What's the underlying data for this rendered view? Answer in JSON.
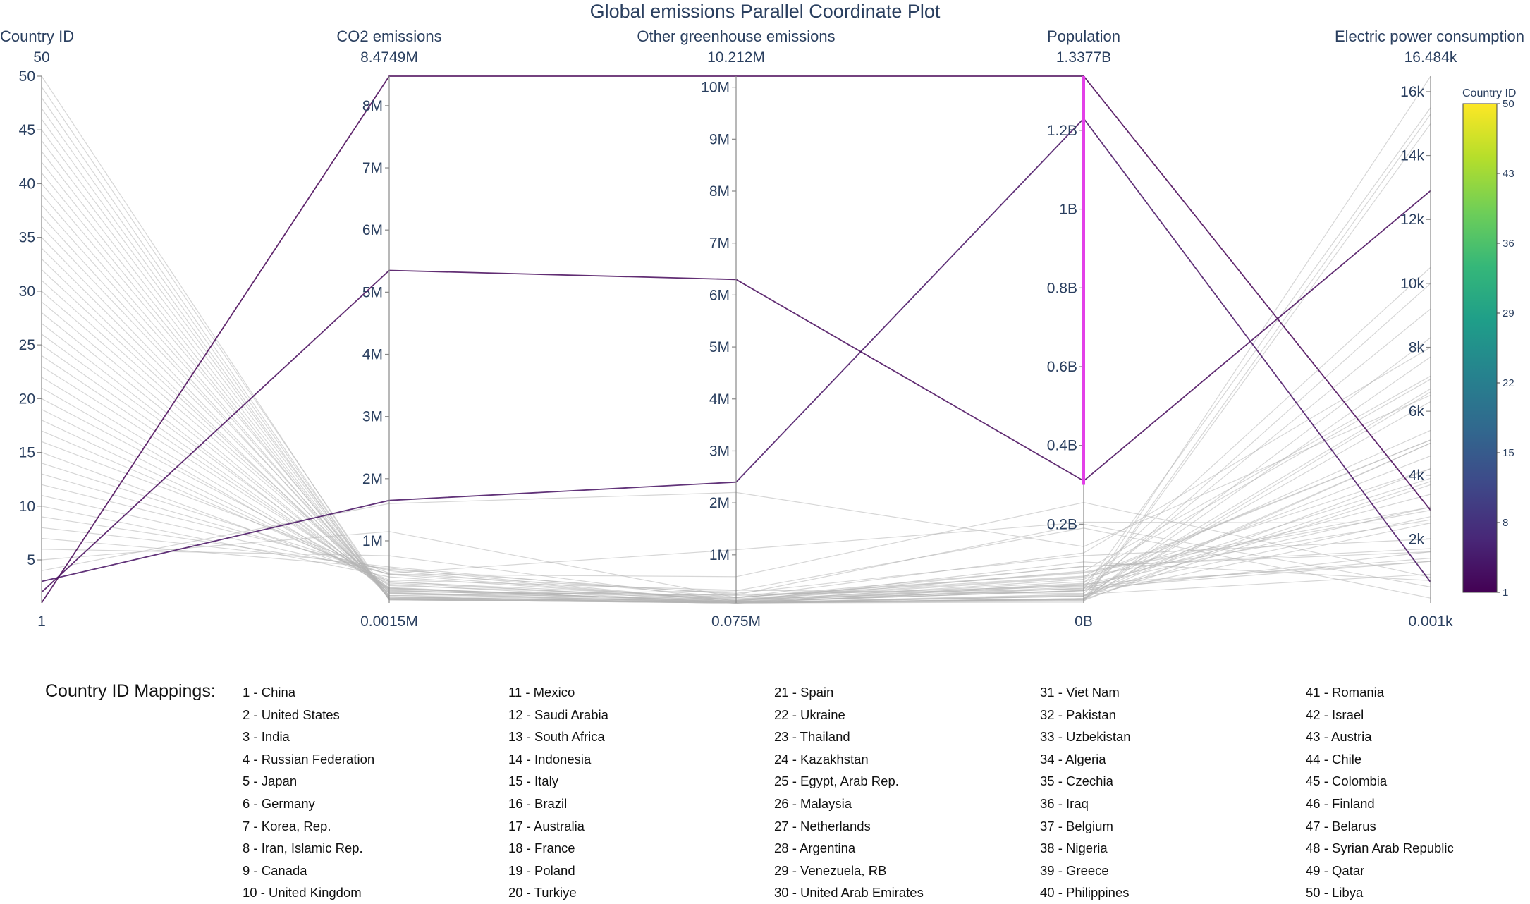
{
  "chart_data": {
    "type": "parallel_coordinates",
    "title": "Global emissions Parallel Coordinate Plot",
    "dimensions": [
      {
        "key": "country_id",
        "label": "Country ID",
        "range": [
          1,
          50
        ],
        "range_min_label": "1",
        "range_max_label": "50",
        "ticks": [
          5,
          10,
          15,
          20,
          25,
          30,
          35,
          40,
          45,
          50
        ],
        "tick_labels": [
          "5",
          "10",
          "15",
          "20",
          "25",
          "30",
          "35",
          "40",
          "45",
          "50"
        ]
      },
      {
        "key": "co2",
        "label": "CO2 emissions",
        "range": [
          0.0015,
          8.4749
        ],
        "range_min_label": "0.0015M",
        "range_max_label": "8.4749M",
        "ticks": [
          1,
          2,
          3,
          4,
          5,
          6,
          7,
          8
        ],
        "tick_labels": [
          "1M",
          "2M",
          "3M",
          "4M",
          "5M",
          "6M",
          "7M",
          "8M"
        ]
      },
      {
        "key": "ghg",
        "label": "Other greenhouse emissions",
        "range": [
          0.075,
          10.212
        ],
        "range_min_label": "0.075M",
        "range_max_label": "10.212M",
        "ticks": [
          1,
          2,
          3,
          4,
          5,
          6,
          7,
          8,
          9,
          10
        ],
        "tick_labels": [
          "1M",
          "2M",
          "3M",
          "4M",
          "5M",
          "6M",
          "7M",
          "8M",
          "9M",
          "10M"
        ]
      },
      {
        "key": "population",
        "label": "Population",
        "range": [
          0,
          1.3377
        ],
        "range_min_label": "0B",
        "range_max_label": "1.3377B",
        "ticks": [
          0.2,
          0.4,
          0.6,
          0.8,
          1.0,
          1.2
        ],
        "tick_labels": [
          "0.2B",
          "0.4B",
          "0.6B",
          "0.8B",
          "1B",
          "1.2B"
        ],
        "constraint_range": [
          0.3,
          1.3377
        ]
      },
      {
        "key": "electric",
        "label": "Electric power consumption",
        "range": [
          0.001,
          16.484
        ],
        "range_min_label": "0.001k",
        "range_max_label": "16.484k",
        "ticks": [
          2,
          4,
          6,
          8,
          10,
          12,
          14,
          16
        ],
        "tick_labels": [
          "2k",
          "4k",
          "6k",
          "8k",
          "10k",
          "12k",
          "14k",
          "16k"
        ]
      }
    ],
    "highlighted_lines": [
      {
        "country_id": 1,
        "co2": 8.4749,
        "ghg": 10.212,
        "population": 1.3377,
        "electric": 2.9
      },
      {
        "country_id": 2,
        "co2": 5.35,
        "ghg": 6.3,
        "population": 0.31,
        "electric": 12.9
      },
      {
        "country_id": 3,
        "co2": 1.65,
        "ghg": 2.4,
        "population": 1.23,
        "electric": 0.65
      }
    ],
    "background_lines": [
      {
        "country_id": 4,
        "co2": 1.6,
        "ghg": 2.2,
        "population": 0.143,
        "electric": 6.5
      },
      {
        "country_id": 5,
        "co2": 1.15,
        "ghg": 0.18,
        "population": 0.127,
        "electric": 8.0
      },
      {
        "country_id": 6,
        "co2": 0.76,
        "ghg": 0.11,
        "population": 0.081,
        "electric": 7.1
      },
      {
        "country_id": 7,
        "co2": 0.56,
        "ghg": 0.09,
        "population": 0.05,
        "electric": 10.5
      },
      {
        "country_id": 8,
        "co2": 0.58,
        "ghg": 0.18,
        "population": 0.076,
        "electric": 2.9
      },
      {
        "country_id": 9,
        "co2": 0.54,
        "ghg": 0.24,
        "population": 0.035,
        "electric": 15.5
      },
      {
        "country_id": 10,
        "co2": 0.42,
        "ghg": 0.13,
        "population": 0.064,
        "electric": 5.1
      },
      {
        "country_id": 11,
        "co2": 0.47,
        "ghg": 0.26,
        "population": 0.12,
        "electric": 2.0
      },
      {
        "country_id": 12,
        "co2": 0.52,
        "ghg": 0.09,
        "population": 0.031,
        "electric": 9.2
      },
      {
        "country_id": 13,
        "co2": 0.46,
        "ghg": 0.12,
        "population": 0.054,
        "electric": 4.2
      },
      {
        "country_id": 14,
        "co2": 0.46,
        "ghg": 0.58,
        "population": 0.255,
        "electric": 0.8
      },
      {
        "country_id": 15,
        "co2": 0.35,
        "ghg": 0.1,
        "population": 0.06,
        "electric": 5.1
      },
      {
        "country_id": 16,
        "co2": 0.48,
        "ghg": 1.1,
        "population": 0.205,
        "electric": 2.5
      },
      {
        "country_id": 17,
        "co2": 0.37,
        "ghg": 0.32,
        "population": 0.024,
        "electric": 10.0
      },
      {
        "country_id": 18,
        "co2": 0.32,
        "ghg": 0.15,
        "population": 0.066,
        "electric": 7.0
      },
      {
        "country_id": 19,
        "co2": 0.3,
        "ghg": 0.08,
        "population": 0.038,
        "electric": 3.9
      },
      {
        "country_id": 20,
        "co2": 0.34,
        "ghg": 0.18,
        "population": 0.078,
        "electric": 3.0
      },
      {
        "country_id": 21,
        "co2": 0.24,
        "ghg": 0.09,
        "population": 0.046,
        "electric": 5.4
      },
      {
        "country_id": 22,
        "co2": 0.23,
        "ghg": 0.1,
        "population": 0.045,
        "electric": 3.4
      },
      {
        "country_id": 23,
        "co2": 0.28,
        "ghg": 0.18,
        "population": 0.068,
        "electric": 2.6
      },
      {
        "country_id": 24,
        "co2": 0.25,
        "ghg": 0.06,
        "population": 0.017,
        "electric": 5.0
      },
      {
        "country_id": 25,
        "co2": 0.22,
        "ghg": 0.17,
        "population": 0.092,
        "electric": 1.7
      },
      {
        "country_id": 26,
        "co2": 0.24,
        "ghg": 0.09,
        "population": 0.031,
        "electric": 4.6
      },
      {
        "country_id": 27,
        "co2": 0.16,
        "ghg": 0.06,
        "population": 0.017,
        "electric": 6.7
      },
      {
        "country_id": 28,
        "co2": 0.19,
        "ghg": 0.22,
        "population": 0.043,
        "electric": 3.0
      },
      {
        "country_id": 29,
        "co2": 0.16,
        "ghg": 0.15,
        "population": 0.031,
        "electric": 2.7
      },
      {
        "country_id": 30,
        "co2": 0.21,
        "ghg": 0.06,
        "population": 0.009,
        "electric": 16.48
      },
      {
        "country_id": 31,
        "co2": 0.2,
        "ghg": 0.12,
        "population": 0.093,
        "electric": 1.6
      },
      {
        "country_id": 32,
        "co2": 0.18,
        "ghg": 0.23,
        "population": 0.2,
        "electric": 0.5
      },
      {
        "country_id": 33,
        "co2": 0.1,
        "ghg": 0.08,
        "population": 0.032,
        "electric": 1.6
      },
      {
        "country_id": 34,
        "co2": 0.15,
        "ghg": 0.07,
        "population": 0.041,
        "electric": 1.4
      },
      {
        "country_id": 35,
        "co2": 0.1,
        "ghg": 0.03,
        "population": 0.011,
        "electric": 6.3
      },
      {
        "country_id": 36,
        "co2": 0.17,
        "ghg": 0.08,
        "population": 0.037,
        "electric": 1.3
      },
      {
        "country_id": 37,
        "co2": 0.09,
        "ghg": 0.04,
        "population": 0.011,
        "electric": 7.7
      },
      {
        "country_id": 38,
        "co2": 0.12,
        "ghg": 0.31,
        "population": 0.19,
        "electric": 0.15
      },
      {
        "country_id": 39,
        "co2": 0.07,
        "ghg": 0.03,
        "population": 0.011,
        "electric": 5.0
      },
      {
        "country_id": 40,
        "co2": 0.12,
        "ghg": 0.1,
        "population": 0.104,
        "electric": 0.7
      },
      {
        "country_id": 41,
        "co2": 0.07,
        "ghg": 0.04,
        "population": 0.02,
        "electric": 2.5
      },
      {
        "country_id": 42,
        "co2": 0.06,
        "ghg": 0.02,
        "population": 0.008,
        "electric": 6.6
      },
      {
        "country_id": 43,
        "co2": 0.06,
        "ghg": 0.02,
        "population": 0.009,
        "electric": 8.3
      },
      {
        "country_id": 44,
        "co2": 0.08,
        "ghg": 0.04,
        "population": 0.018,
        "electric": 3.8
      },
      {
        "country_id": 45,
        "co2": 0.08,
        "ghg": 0.12,
        "population": 0.048,
        "electric": 1.3
      },
      {
        "country_id": 46,
        "co2": 0.05,
        "ghg": 0.02,
        "population": 0.005,
        "electric": 15.3
      },
      {
        "country_id": 47,
        "co2": 0.06,
        "ghg": 0.03,
        "population": 0.009,
        "electric": 3.7
      },
      {
        "country_id": 48,
        "co2": 0.05,
        "ghg": 0.04,
        "population": 0.022,
        "electric": 0.9
      },
      {
        "country_id": 49,
        "co2": 0.1,
        "ghg": 0.03,
        "population": 0.002,
        "electric": 15.0
      },
      {
        "country_id": 50,
        "co2": 0.05,
        "ghg": 0.03,
        "population": 0.006,
        "electric": 4.2
      }
    ],
    "colorbar": {
      "title": "Country ID",
      "range": [
        1,
        50
      ],
      "ticks": [
        1,
        8,
        15,
        22,
        29,
        36,
        43,
        50
      ],
      "colorscale": "Viridis",
      "colors": [
        "#440154",
        "#482878",
        "#3e4989",
        "#31688e",
        "#26828e",
        "#1f9e89",
        "#35b779",
        "#6ece58",
        "#b5de2b",
        "#fde725"
      ]
    },
    "constraint_color": "#e340e8",
    "background_line_color": "#b4b4b4",
    "axis_color": "#888888"
  },
  "mappings": {
    "title": "Country ID Mappings:",
    "columns": [
      [
        "1 - China",
        "2 - United States",
        "3 - India",
        "4 - Russian Federation",
        "5 - Japan",
        "6 - Germany",
        "7 - Korea, Rep.",
        "8 - Iran, Islamic Rep.",
        "9 - Canada",
        "10 - United Kingdom"
      ],
      [
        "11 - Mexico",
        "12 - Saudi Arabia",
        "13 - South Africa",
        "14 - Indonesia",
        "15 - Italy",
        "16 - Brazil",
        "17 - Australia",
        "18 - France",
        "19 - Poland",
        "20 - Turkiye"
      ],
      [
        "21 - Spain",
        "22 - Ukraine",
        "23 - Thailand",
        "24 - Kazakhstan",
        "25 - Egypt, Arab Rep.",
        "26 - Malaysia",
        "27 - Netherlands",
        "28 - Argentina",
        "29 - Venezuela, RB",
        "30 - United Arab Emirates"
      ],
      [
        "31 - Viet Nam",
        "32 - Pakistan",
        "33 - Uzbekistan",
        "34 - Algeria",
        "35 - Czechia",
        "36 - Iraq",
        "37 - Belgium",
        "38 - Nigeria",
        "39 - Greece",
        "40 - Philippines"
      ],
      [
        "41 - Romania",
        "42 - Israel",
        "43 - Austria",
        "44 - Chile",
        "45 - Colombia",
        "46 - Finland",
        "47 - Belarus",
        "48 - Syrian Arab Republic",
        "49 - Qatar",
        "50 - Libya"
      ]
    ]
  }
}
